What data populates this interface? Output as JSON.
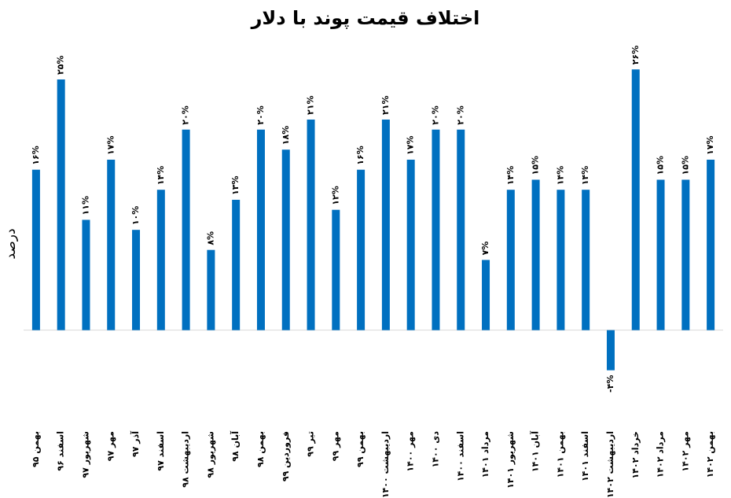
{
  "chart_data": {
    "type": "bar",
    "title": "اختلاف قیمت پوند با دلار",
    "y_label": "درصد",
    "categories": [
      "بهمن ۹۵",
      "اسفند ۹۶",
      "شهریور ۹۷",
      "مهر ۹۷",
      "آذر ۹۷",
      "اسفند ۹۷",
      "اردیبهشت ۹۸",
      "شهریور ۹۸",
      "آبان ۹۸",
      "بهمن ۹۸",
      "فروردین ۹۹",
      "تیر ۹۹",
      "مهر ۹۹",
      "بهمن ۹۹",
      "اردیبهشت ۱۴۰۰",
      "مهر ۱۴۰۰",
      "دی ۱۴۰۰",
      "اسفند ۱۴۰۰",
      "مرداد ۱۴۰۱",
      "شهریور ۱۴۰۱",
      "آبان ۱۴۰۱",
      "بهمن ۱۴۰۱",
      "اسفند ۱۴۰۱",
      "اردیبهشت ۱۴۰۲",
      "خرداد ۱۴۰۲",
      "مرداد ۱۴۰۲",
      "مهر ۱۴۰۲",
      "بهمن ۱۴۰۲"
    ],
    "values": [
      16,
      25,
      11,
      17,
      10,
      14,
      20,
      8,
      13,
      20,
      18,
      21,
      12,
      16,
      21,
      17,
      20,
      20,
      7,
      14,
      15,
      14,
      14,
      -4,
      26,
      15,
      15,
      17
    ],
    "value_labels": [
      "۱۶%",
      "۲۵%",
      "۱۱%",
      "۱۷%",
      "۱۰%",
      "۱۴%",
      "۲۰%",
      "۸%",
      "۱۳%",
      "۲۰%",
      "۱۸%",
      "۲۱%",
      "۱۲%",
      "۱۶%",
      "۲۱%",
      "۱۷%",
      "۲۰%",
      "۲۰%",
      "۷%",
      "۱۴%",
      "۱۵%",
      "۱۴%",
      "۱۴%",
      "-۴%",
      "۲۶%",
      "۱۵%",
      "۱۵%",
      "۱۷%"
    ],
    "color": "#0070c0",
    "ylim": [
      -8.5,
      29
    ]
  }
}
